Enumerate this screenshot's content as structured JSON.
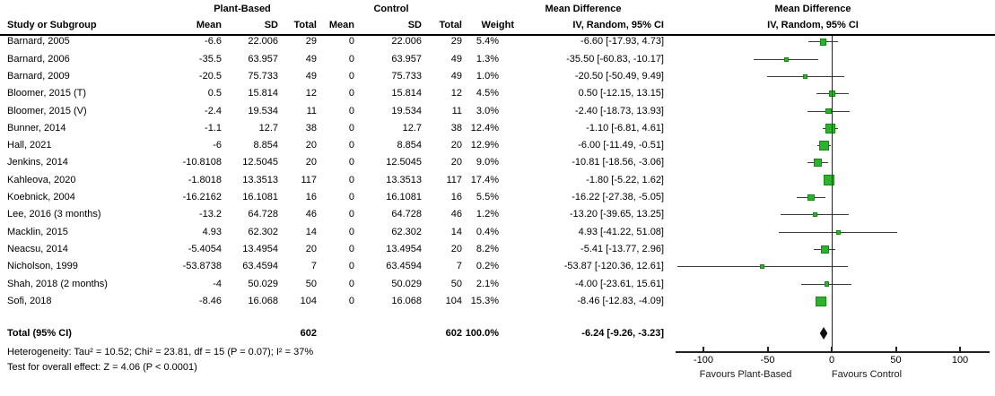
{
  "headers": {
    "plant_based": "Plant-Based",
    "control": "Control",
    "md_text": "Mean Difference",
    "md_plot": "Mean Difference",
    "study": "Study or Subgroup",
    "mean_pb": "Mean",
    "sd_pb": "SD",
    "total_pb": "Total",
    "mean_c": "Mean",
    "sd_c": "SD",
    "total_c": "Total",
    "weight": "Weight",
    "iv_text": "IV, Random, 95% CI",
    "iv_plot": "IV, Random, 95% CI"
  },
  "footnotes": {
    "heterogeneity": "Heterogeneity: Tau² = 10.52; Chi² = 23.81, df = 15 (P = 0.07); I² = 37%",
    "overall_effect": "Test for overall effect: Z = 4.06 (P < 0.0001)"
  },
  "colors": {
    "marker_fill": "#2db22d",
    "marker_edge": "#128a12",
    "ci_line": "#3d3d3d",
    "axis": "#222222",
    "diamond": "#111111"
  },
  "chart_data": {
    "type": "scatter",
    "variant": "forest-plot",
    "title": "Mean Difference",
    "effect_measure": "IV, Random, 95% CI",
    "x_ticks": [
      -100,
      -50,
      0,
      50,
      100
    ],
    "xlim": [
      -122,
      123
    ],
    "favours_left": "Favours Plant-Based",
    "favours_right": "Favours Control",
    "points": [
      {
        "study": "Barnard, 2005",
        "pb_mean": "-6.6",
        "pb_sd": "22.006",
        "pb_total": "29",
        "c_mean": "0",
        "c_sd": "22.006",
        "c_total": "29",
        "weight": "5.4%",
        "w": 5.4,
        "est": -6.6,
        "lo": -17.93,
        "hi": 4.73,
        "md": "-6.60 [-17.93, 4.73]"
      },
      {
        "study": "Barnard, 2006",
        "pb_mean": "-35.5",
        "pb_sd": "63.957",
        "pb_total": "49",
        "c_mean": "0",
        "c_sd": "63.957",
        "c_total": "49",
        "weight": "1.3%",
        "w": 1.3,
        "est": -35.5,
        "lo": -60.83,
        "hi": -10.17,
        "md": "-35.50 [-60.83, -10.17]"
      },
      {
        "study": "Barnard, 2009",
        "pb_mean": "-20.5",
        "pb_sd": "75.733",
        "pb_total": "49",
        "c_mean": "0",
        "c_sd": "75.733",
        "c_total": "49",
        "weight": "1.0%",
        "w": 1.0,
        "est": -20.5,
        "lo": -50.49,
        "hi": 9.49,
        "md": "-20.50 [-50.49, 9.49]"
      },
      {
        "study": "Bloomer, 2015 (T)",
        "pb_mean": "0.5",
        "pb_sd": "15.814",
        "pb_total": "12",
        "c_mean": "0",
        "c_sd": "15.814",
        "c_total": "12",
        "weight": "4.5%",
        "w": 4.5,
        "est": 0.5,
        "lo": -12.15,
        "hi": 13.15,
        "md": "0.50 [-12.15, 13.15]"
      },
      {
        "study": "Bloomer, 2015 (V)",
        "pb_mean": "-2.4",
        "pb_sd": "19.534",
        "pb_total": "11",
        "c_mean": "0",
        "c_sd": "19.534",
        "c_total": "11",
        "weight": "3.0%",
        "w": 3.0,
        "est": -2.4,
        "lo": -18.73,
        "hi": 13.93,
        "md": "-2.40 [-18.73, 13.93]"
      },
      {
        "study": "Bunner, 2014",
        "pb_mean": "-1.1",
        "pb_sd": "12.7",
        "pb_total": "38",
        "c_mean": "0",
        "c_sd": "12.7",
        "c_total": "38",
        "weight": "12.4%",
        "w": 12.4,
        "est": -1.1,
        "lo": -6.81,
        "hi": 4.61,
        "md": "-1.10 [-6.81, 4.61]"
      },
      {
        "study": "Hall, 2021",
        "pb_mean": "-6",
        "pb_sd": "8.854",
        "pb_total": "20",
        "c_mean": "0",
        "c_sd": "8.854",
        "c_total": "20",
        "weight": "12.9%",
        "w": 12.9,
        "est": -6.0,
        "lo": -11.49,
        "hi": -0.51,
        "md": "-6.00 [-11.49, -0.51]"
      },
      {
        "study": "Jenkins, 2014",
        "pb_mean": "-10.8108",
        "pb_sd": "12.5045",
        "pb_total": "20",
        "c_mean": "0",
        "c_sd": "12.5045",
        "c_total": "20",
        "weight": "9.0%",
        "w": 9.0,
        "est": -10.81,
        "lo": -18.56,
        "hi": -3.06,
        "md": "-10.81 [-18.56, -3.06]"
      },
      {
        "study": "Kahleova, 2020",
        "pb_mean": "-1.8018",
        "pb_sd": "13.3513",
        "pb_total": "117",
        "c_mean": "0",
        "c_sd": "13.3513",
        "c_total": "117",
        "weight": "17.4%",
        "w": 17.4,
        "est": -1.8,
        "lo": -5.22,
        "hi": 1.62,
        "md": "-1.80 [-5.22, 1.62]"
      },
      {
        "study": "Koebnick, 2004",
        "pb_mean": "-16.2162",
        "pb_sd": "16.1081",
        "pb_total": "16",
        "c_mean": "0",
        "c_sd": "16.1081",
        "c_total": "16",
        "weight": "5.5%",
        "w": 5.5,
        "est": -16.22,
        "lo": -27.38,
        "hi": -5.05,
        "md": "-16.22 [-27.38, -5.05]"
      },
      {
        "study": "Lee, 2016 (3 months)",
        "pb_mean": "-13.2",
        "pb_sd": "64.728",
        "pb_total": "46",
        "c_mean": "0",
        "c_sd": "64.728",
        "c_total": "46",
        "weight": "1.2%",
        "w": 1.2,
        "est": -13.2,
        "lo": -39.65,
        "hi": 13.25,
        "md": "-13.20 [-39.65, 13.25]"
      },
      {
        "study": "Macklin, 2015",
        "pb_mean": "4.93",
        "pb_sd": "62.302",
        "pb_total": "14",
        "c_mean": "0",
        "c_sd": "62.302",
        "c_total": "14",
        "weight": "0.4%",
        "w": 0.4,
        "est": 4.93,
        "lo": -41.22,
        "hi": 51.08,
        "md": "4.93 [-41.22, 51.08]"
      },
      {
        "study": "Neacsu, 2014",
        "pb_mean": "-5.4054",
        "pb_sd": "13.4954",
        "pb_total": "20",
        "c_mean": "0",
        "c_sd": "13.4954",
        "c_total": "20",
        "weight": "8.2%",
        "w": 8.2,
        "est": -5.41,
        "lo": -13.77,
        "hi": 2.96,
        "md": "-5.41 [-13.77, 2.96]"
      },
      {
        "study": "Nicholson, 1999",
        "pb_mean": "-53.8738",
        "pb_sd": "63.4594",
        "pb_total": "7",
        "c_mean": "0",
        "c_sd": "63.4594",
        "c_total": "7",
        "weight": "0.2%",
        "w": 0.2,
        "est": -53.87,
        "lo": -120.36,
        "hi": 12.61,
        "md": "-53.87 [-120.36, 12.61]"
      },
      {
        "study": "Shah, 2018 (2 months)",
        "pb_mean": "-4",
        "pb_sd": "50.029",
        "pb_total": "50",
        "c_mean": "0",
        "c_sd": "50.029",
        "c_total": "50",
        "weight": "2.1%",
        "w": 2.1,
        "est": -4.0,
        "lo": -23.61,
        "hi": 15.61,
        "md": "-4.00 [-23.61, 15.61]"
      },
      {
        "study": "Sofi, 2018",
        "pb_mean": "-8.46",
        "pb_sd": "16.068",
        "pb_total": "104",
        "c_mean": "0",
        "c_sd": "16.068",
        "c_total": "104",
        "weight": "15.3%",
        "w": 15.3,
        "est": -8.46,
        "lo": -12.83,
        "hi": -4.09,
        "md": "-8.46 [-12.83, -4.09]"
      }
    ],
    "total": {
      "label": "Total (95% CI)",
      "pb_total": "602",
      "c_total": "602",
      "weight": "100.0%",
      "w": 100.0,
      "est": -6.24,
      "lo": -9.26,
      "hi": -3.23,
      "md": "-6.24 [-9.26, -3.23]"
    }
  }
}
